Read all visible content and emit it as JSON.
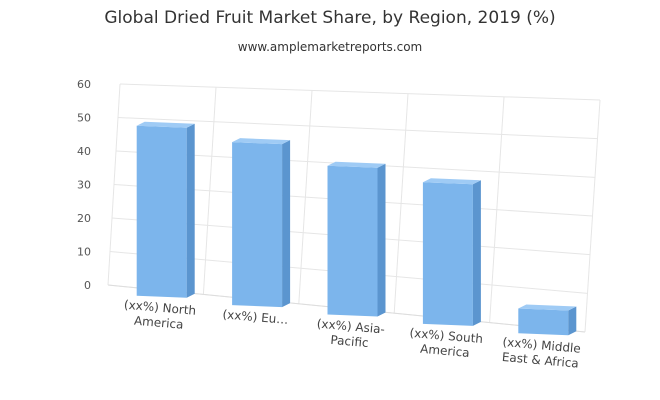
{
  "chart_data": {
    "type": "bar",
    "title": "Global Dried Fruit Market Share, by Region, 2019 (%)",
    "subtitle": "www.amplemarketreports.com",
    "categories": [
      [
        "(xx%) North",
        "America"
      ],
      [
        "(xx%) Eu…"
      ],
      [
        "(xx%) Asia-",
        "Pacific"
      ],
      [
        "(xx%) South",
        "America"
      ],
      [
        "(xx%) Middle",
        "East & Africa"
      ]
    ],
    "series": [
      {
        "values": [
          48,
          46,
          42,
          40,
          7
        ]
      }
    ],
    "ylim": [
      0,
      60
    ],
    "yticks": [
      0,
      10,
      20,
      30,
      40,
      50,
      60
    ],
    "grid": true,
    "bar_color": "#7cb5ec"
  }
}
